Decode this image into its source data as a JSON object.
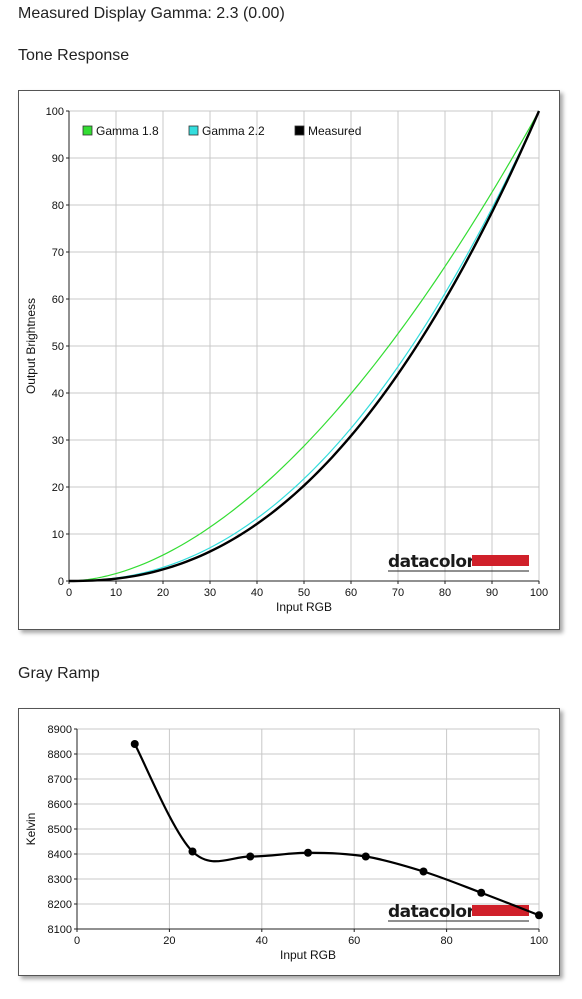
{
  "page": {
    "title": "Measured Display Gamma: 2.3 (0.00)",
    "tone_heading": "Tone Response",
    "gray_heading": "Gray Ramp"
  },
  "brand": {
    "name": "datacolor",
    "bar_color": "#d0202a"
  },
  "chart_data": [
    {
      "type": "line",
      "id": "tone-response",
      "xlabel": "Input RGB",
      "ylabel": "Output Brightness",
      "xlim": [
        0,
        100
      ],
      "ylim": [
        0,
        100
      ],
      "xticks": [
        0,
        10,
        20,
        30,
        40,
        50,
        60,
        70,
        80,
        90,
        100
      ],
      "yticks": [
        0,
        10,
        20,
        30,
        40,
        50,
        60,
        70,
        80,
        90,
        100
      ],
      "grid": true,
      "legend": "top-left",
      "series": [
        {
          "name": "Gamma 1.8",
          "color": "#33dd33",
          "gamma": 1.8,
          "x": [
            0,
            10,
            20,
            30,
            40,
            50,
            60,
            70,
            80,
            90,
            100
          ],
          "y": [
            0,
            1.6,
            5.5,
            11.5,
            19.2,
            28.7,
            39.9,
            52.6,
            66.9,
            82.7,
            100
          ]
        },
        {
          "name": "Gamma 2.2",
          "color": "#33dddd",
          "gamma": 2.2,
          "x": [
            0,
            10,
            20,
            30,
            40,
            50,
            60,
            70,
            80,
            90,
            100
          ],
          "y": [
            0,
            0.6,
            2.9,
            7.1,
            13.3,
            21.8,
            32.5,
            45.6,
            61.2,
            79.3,
            100
          ]
        },
        {
          "name": "Measured",
          "color": "#000000",
          "gamma": 2.3,
          "x": [
            0,
            10,
            20,
            30,
            40,
            50,
            60,
            70,
            80,
            90,
            100
          ],
          "y": [
            0,
            0.5,
            2.5,
            6.3,
            12.2,
            20.4,
            30.9,
            44.0,
            59.9,
            78.5,
            100
          ]
        }
      ]
    },
    {
      "type": "line",
      "id": "gray-ramp",
      "xlabel": "Input RGB",
      "ylabel": "Kelvin",
      "xlim": [
        0,
        100
      ],
      "ylim": [
        8100,
        8900
      ],
      "xticks": [
        0,
        20,
        40,
        60,
        80,
        100
      ],
      "yticks": [
        8100,
        8200,
        8300,
        8400,
        8500,
        8600,
        8700,
        8800,
        8900
      ],
      "grid": true,
      "legend": "none",
      "series": [
        {
          "color": "#000000",
          "x": [
            12.5,
            25,
            37.5,
            50,
            62.5,
            75,
            87.5,
            100
          ],
          "y": [
            8840,
            8410,
            8390,
            8405,
            8390,
            8330,
            8245,
            8155
          ]
        }
      ]
    }
  ]
}
